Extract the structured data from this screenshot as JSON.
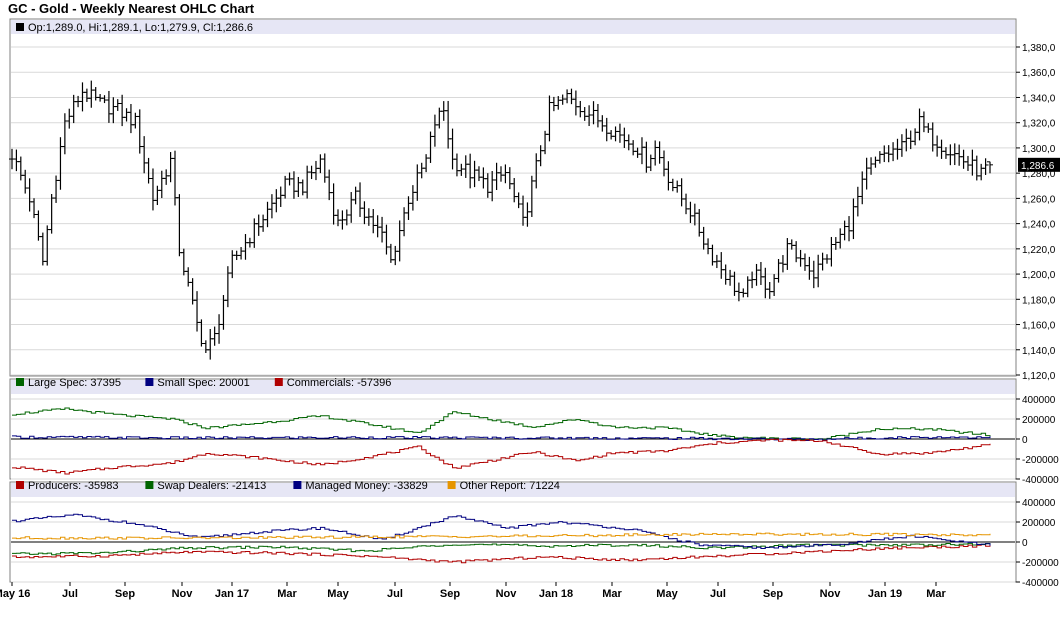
{
  "chart_data": [
    {
      "type": "ohlc",
      "title": "GC - Gold - Weekly Nearest OHLC Chart",
      "readout": "Op:1,289.0, Hi:1,289.1, Lo:1,279.9, Cl:1,286.6",
      "last_value_label": "1,286.6",
      "ylim": [
        1120,
        1380
      ],
      "yticks": [
        "1,380,0",
        "1,360,0",
        "1,340,0",
        "1,320,0",
        "1,300,0",
        "1,280,0",
        "1,260,0",
        "1,240,0",
        "1,220,0",
        "1,200,0",
        "1,180,0",
        "1,160,0",
        "1,140,0",
        "1,120,0"
      ],
      "ytick_values": [
        1380,
        1360,
        1340,
        1320,
        1300,
        1280,
        1260,
        1240,
        1220,
        1200,
        1180,
        1160,
        1140,
        1120
      ],
      "xticks": [
        "May 16",
        "Jul",
        "Sep",
        "Nov",
        "Jan 17",
        "Mar",
        "May",
        "Jul",
        "Sep",
        "Nov",
        "Jan 18",
        "Mar",
        "May",
        "Jul",
        "Sep",
        "Nov",
        "Jan 19",
        "Mar"
      ],
      "anchors": [
        [
          0,
          1295
        ],
        [
          4,
          1260
        ],
        [
          7,
          1210
        ],
        [
          9,
          1260
        ],
        [
          12,
          1320
        ],
        [
          16,
          1345
        ],
        [
          20,
          1335
        ],
        [
          24,
          1330
        ],
        [
          28,
          1320
        ],
        [
          32,
          1260
        ],
        [
          36,
          1290
        ],
        [
          38,
          1220
        ],
        [
          42,
          1160
        ],
        [
          44,
          1140
        ],
        [
          46,
          1150
        ],
        [
          50,
          1210
        ],
        [
          54,
          1230
        ],
        [
          58,
          1250
        ],
        [
          62,
          1270
        ],
        [
          66,
          1270
        ],
        [
          70,
          1290
        ],
        [
          74,
          1240
        ],
        [
          78,
          1260
        ],
        [
          82,
          1240
        ],
        [
          84,
          1230
        ],
        [
          86,
          1210
        ],
        [
          90,
          1260
        ],
        [
          94,
          1290
        ],
        [
          96,
          1320
        ],
        [
          98,
          1330
        ],
        [
          100,
          1290
        ],
        [
          104,
          1280
        ],
        [
          108,
          1270
        ],
        [
          112,
          1280
        ],
        [
          116,
          1240
        ],
        [
          118,
          1270
        ],
        [
          120,
          1300
        ],
        [
          122,
          1330
        ],
        [
          126,
          1340
        ],
        [
          130,
          1330
        ],
        [
          134,
          1320
        ],
        [
          138,
          1310
        ],
        [
          142,
          1300
        ],
        [
          144,
          1290
        ],
        [
          146,
          1300
        ],
        [
          150,
          1270
        ],
        [
          154,
          1250
        ],
        [
          158,
          1220
        ],
        [
          162,
          1200
        ],
        [
          164,
          1190
        ],
        [
          166,
          1180
        ],
        [
          168,
          1200
        ],
        [
          172,
          1190
        ],
        [
          176,
          1220
        ],
        [
          180,
          1210
        ],
        [
          182,
          1200
        ],
        [
          186,
          1220
        ],
        [
          190,
          1240
        ],
        [
          194,
          1280
        ],
        [
          198,
          1295
        ],
        [
          202,
          1300
        ],
        [
          206,
          1320
        ],
        [
          208,
          1310
        ],
        [
          212,
          1300
        ],
        [
          216,
          1290
        ],
        [
          220,
          1280
        ],
        [
          222,
          1286.6
        ]
      ],
      "last_bar": {
        "open": 1289.0,
        "high": 1289.1,
        "low": 1279.9,
        "close": 1286.6
      }
    },
    {
      "type": "line",
      "ylim": [
        -400000,
        400000
      ],
      "yticks": [
        "400000",
        "200000",
        "0",
        "-200000",
        "-400000"
      ],
      "ytick_values": [
        400000,
        200000,
        0,
        -200000,
        -400000
      ],
      "series": [
        {
          "name": "Large Spec",
          "legend": "Large Spec: 37395",
          "color": "#006400",
          "anchors": [
            [
              0,
              250000
            ],
            [
              12,
              300000
            ],
            [
              24,
              240000
            ],
            [
              36,
              200000
            ],
            [
              44,
              110000
            ],
            [
              56,
              160000
            ],
            [
              70,
              230000
            ],
            [
              82,
              140000
            ],
            [
              92,
              60000
            ],
            [
              100,
              270000
            ],
            [
              108,
              200000
            ],
            [
              118,
              120000
            ],
            [
              128,
              200000
            ],
            [
              136,
              120000
            ],
            [
              148,
              110000
            ],
            [
              160,
              30000
            ],
            [
              172,
              5000
            ],
            [
              184,
              0
            ],
            [
              196,
              100000
            ],
            [
              208,
              100000
            ],
            [
              222,
              37395
            ]
          ]
        },
        {
          "name": "Small Spec",
          "legend": "Small Spec: 20001",
          "color": "#000080",
          "anchors": [
            [
              0,
              20000
            ],
            [
              40,
              10000
            ],
            [
              80,
              15000
            ],
            [
              120,
              10000
            ],
            [
              160,
              5000
            ],
            [
              180,
              -5000
            ],
            [
              200,
              15000
            ],
            [
              222,
              20001
            ]
          ]
        },
        {
          "name": "Commercials",
          "legend": "Commercials: -57396",
          "color": "#b00000",
          "anchors": [
            [
              0,
              -280000
            ],
            [
              12,
              -340000
            ],
            [
              24,
              -280000
            ],
            [
              36,
              -240000
            ],
            [
              44,
              -140000
            ],
            [
              56,
              -190000
            ],
            [
              70,
              -260000
            ],
            [
              82,
              -170000
            ],
            [
              92,
              -80000
            ],
            [
              100,
              -290000
            ],
            [
              108,
              -220000
            ],
            [
              118,
              -130000
            ],
            [
              128,
              -220000
            ],
            [
              136,
              -140000
            ],
            [
              148,
              -120000
            ],
            [
              160,
              -40000
            ],
            [
              172,
              -10000
            ],
            [
              184,
              -20000
            ],
            [
              196,
              -150000
            ],
            [
              208,
              -140000
            ],
            [
              222,
              -57396
            ]
          ]
        }
      ]
    },
    {
      "type": "line",
      "ylim": [
        -400000,
        400000
      ],
      "yticks": [
        "400000",
        "200000",
        "0",
        "-200000",
        "-400000"
      ],
      "ytick_values": [
        400000,
        200000,
        0,
        -200000,
        -400000
      ],
      "series": [
        {
          "name": "Producers",
          "legend": "Producers: -35983",
          "color": "#b00000",
          "anchors": [
            [
              0,
              -150000
            ],
            [
              20,
              -140000
            ],
            [
              40,
              -100000
            ],
            [
              60,
              -110000
            ],
            [
              80,
              -140000
            ],
            [
              100,
              -200000
            ],
            [
              120,
              -150000
            ],
            [
              140,
              -180000
            ],
            [
              160,
              -140000
            ],
            [
              180,
              -100000
            ],
            [
              200,
              -60000
            ],
            [
              222,
              -35983
            ]
          ]
        },
        {
          "name": "Swap Dealers",
          "legend": "Swap Dealers: -21413",
          "color": "#006400",
          "anchors": [
            [
              0,
              -120000
            ],
            [
              20,
              -110000
            ],
            [
              40,
              -60000
            ],
            [
              60,
              -50000
            ],
            [
              80,
              -90000
            ],
            [
              100,
              -20000
            ],
            [
              120,
              -40000
            ],
            [
              140,
              -30000
            ],
            [
              160,
              -60000
            ],
            [
              180,
              -30000
            ],
            [
              200,
              -30000
            ],
            [
              222,
              -21413
            ]
          ]
        },
        {
          "name": "Managed Money",
          "legend": "Managed Money: -33829",
          "color": "#000080",
          "anchors": [
            [
              0,
              210000
            ],
            [
              14,
              270000
            ],
            [
              28,
              180000
            ],
            [
              42,
              40000
            ],
            [
              56,
              100000
            ],
            [
              70,
              140000
            ],
            [
              84,
              20000
            ],
            [
              100,
              260000
            ],
            [
              112,
              140000
            ],
            [
              124,
              200000
            ],
            [
              140,
              130000
            ],
            [
              156,
              -30000
            ],
            [
              172,
              -60000
            ],
            [
              188,
              -20000
            ],
            [
              204,
              60000
            ],
            [
              222,
              -33829
            ]
          ]
        },
        {
          "name": "Other Report",
          "legend": "Other Report: 71224",
          "color": "#e69500",
          "anchors": [
            [
              0,
              40000
            ],
            [
              40,
              40000
            ],
            [
              80,
              50000
            ],
            [
              120,
              60000
            ],
            [
              160,
              80000
            ],
            [
              200,
              75000
            ],
            [
              222,
              71224
            ]
          ]
        }
      ]
    }
  ]
}
